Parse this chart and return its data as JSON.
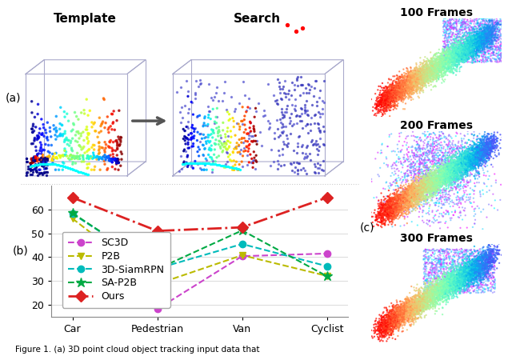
{
  "categories": [
    "Car",
    "Pedestrian",
    "Van",
    "Cyclist"
  ],
  "methods": {
    "SC3D": {
      "values": [
        41.3,
        18.2,
        40.4,
        41.5
      ],
      "color": "#CC44CC",
      "linestyle": "--",
      "marker": "o",
      "linewidth": 1.5,
      "markersize": 6
    },
    "P2B": {
      "values": [
        56.2,
        28.7,
        40.8,
        32.1
      ],
      "color": "#BBBB00",
      "linestyle": "--",
      "marker": "v",
      "linewidth": 1.5,
      "markersize": 6
    },
    "3D-SiamRPN": {
      "values": [
        58.2,
        35.2,
        45.5,
        36.2
      ],
      "color": "#00BBBB",
      "linestyle": "--",
      "marker": "o",
      "linewidth": 1.5,
      "markersize": 6
    },
    "SA-P2B": {
      "values": [
        58.5,
        35.0,
        51.2,
        32.0
      ],
      "color": "#00AA44",
      "linestyle": "--",
      "marker": "*",
      "linewidth": 1.5,
      "markersize": 9
    },
    "Ours": {
      "values": [
        65.0,
        51.0,
        52.5,
        65.0
      ],
      "color": "#DD2222",
      "linestyle": "-.",
      "marker": "D",
      "linewidth": 2.0,
      "markersize": 7
    }
  },
  "ylim": [
    15,
    70
  ],
  "yticks": [
    20,
    30,
    40,
    50,
    60
  ],
  "tick_fontsize": 9,
  "legend_fontsize": 9,
  "grid_color": "#DDDDDD",
  "panel_label_a": "(a)",
  "panel_label_b": "(b)",
  "panel_label_c": "(c)",
  "label_template": "Template",
  "label_search": "Search",
  "label_100": "100 Frames",
  "label_200": "200 Frames",
  "label_300": "300 Frames"
}
